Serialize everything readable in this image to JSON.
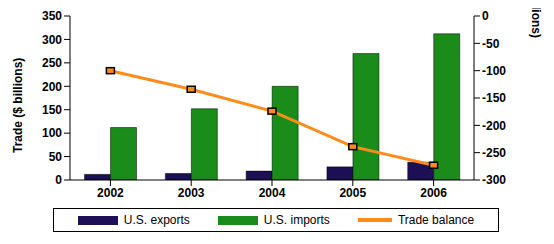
{
  "chart_data": {
    "type": "bar",
    "categories": [
      "2002",
      "2003",
      "2004",
      "2005",
      "2006"
    ],
    "series": [
      {
        "name": "U.S. exports",
        "color": "#1c0f55",
        "values": [
          12,
          14,
          19,
          28,
          38
        ]
      },
      {
        "name": "U.S. imports",
        "color": "#1a8c1a",
        "values": [
          112,
          152,
          200,
          270,
          312
        ]
      },
      {
        "name": "Trade balance",
        "type": "line",
        "axis": "y2",
        "color": "#ff8c1a",
        "marker": "square",
        "values": [
          -100,
          -134,
          -174,
          -239,
          -273
        ]
      }
    ],
    "y_label": "Trade ($ billions)",
    "y2_label": "Balance ($ billions)",
    "ylim": [
      0,
      350
    ],
    "yticks": [
      0,
      50,
      100,
      150,
      200,
      250,
      300,
      350
    ],
    "y2lim": [
      -300,
      0
    ],
    "y2ticks": [
      0,
      -50,
      -100,
      -150,
      -200,
      -250,
      -300
    ],
    "grid": false,
    "legend": "bottom"
  }
}
